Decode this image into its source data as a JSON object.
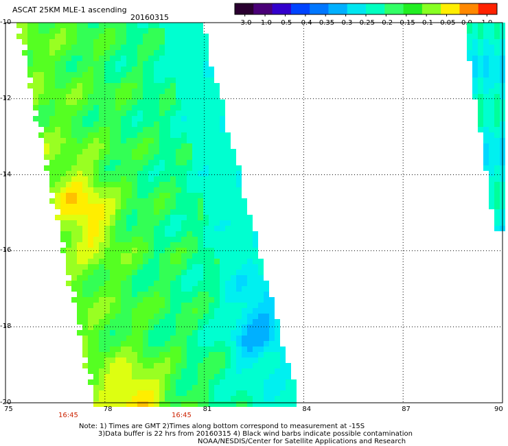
{
  "title": "ASCAT 25KM MLE-1 ascending",
  "date": "20160315",
  "colorbar": {
    "labels": [
      "-3.0",
      "-1.0",
      "-0.5",
      "-0.4",
      "-0.35",
      "-0.3",
      "-0.25",
      "-0.2",
      "-0.15",
      "-0.1",
      "-0.05",
      "0.0",
      "1.0"
    ],
    "colors": [
      "#2a0030",
      "#4a0078",
      "#3300cc",
      "#0044ff",
      "#0077ff",
      "#00b0ff",
      "#00e6f0",
      "#00ffc0",
      "#33ff66",
      "#22ee22",
      "#88ff22",
      "#ffee00",
      "#ff8800",
      "#ff2200"
    ]
  },
  "axes": {
    "y_ticks": [
      "-10",
      "-12",
      "-14",
      "-16",
      "-18",
      "-20"
    ],
    "x_ticks": [
      "75",
      "78",
      "81",
      "84",
      "87",
      "90"
    ],
    "lat_range": [
      -20,
      -10
    ],
    "lon_range": [
      75,
      90
    ]
  },
  "times": [
    "16:45",
    "16:45"
  ],
  "notes": [
    "Note: 1) Times are GMT 2)Times along bottom correspond to measurement at -15S",
    "3)Data buffer is 22 hrs from 20160315 4) Black wind barbs indicate possible contamination",
    "NOAA/NESDIS/Center for Satellite Applications and Research"
  ],
  "colors": {
    "time_label": "#cc2200"
  }
}
